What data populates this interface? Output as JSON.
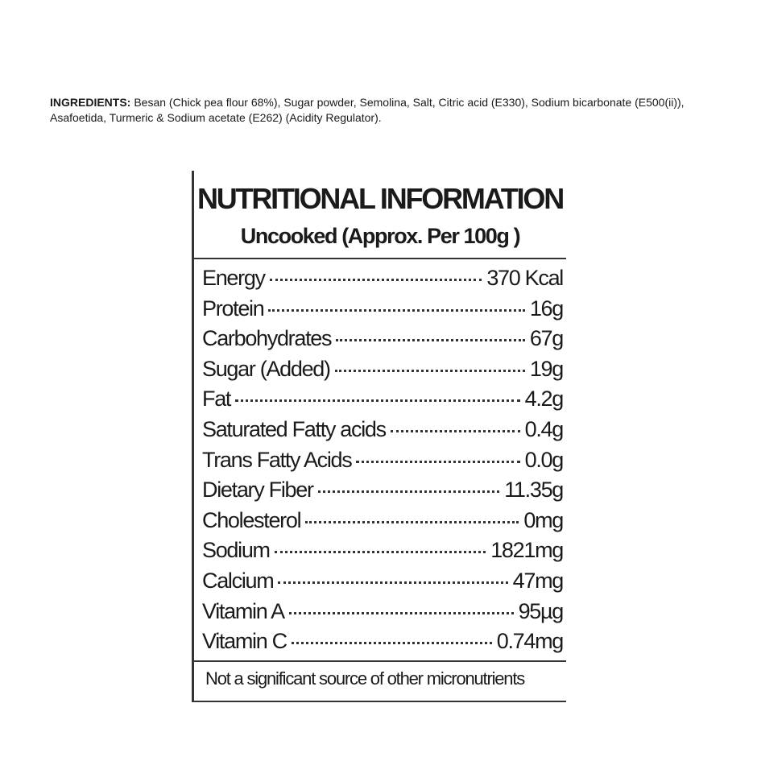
{
  "ingredients": {
    "label": "INGREDIENTS:",
    "text": "Besan (Chick pea flour 68%), Sugar powder, Semolina, Salt, Citric acid (E330), Sodium bicarbonate (E500(ii)), Asafoetida, Turmeric & Sodium acetate (E262) (Acidity Regulator)."
  },
  "nutrition": {
    "title": "NUTRITIONAL INFORMATION",
    "subtitle": "Uncooked (Approx. Per 100g )",
    "rows": [
      {
        "name": "Energy",
        "value": "370 Kcal"
      },
      {
        "name": "Protein",
        "value": "16g"
      },
      {
        "name": "Carbohydrates",
        "value": "67g"
      },
      {
        "name": "Sugar (Added)",
        "value": "19g"
      },
      {
        "name": "Fat",
        "value": "4.2g"
      },
      {
        "name": "Saturated Fatty acids",
        "value": "0.4g"
      },
      {
        "name": "Trans Fatty Acids",
        "value": "0.0g"
      },
      {
        "name": "Dietary Fiber",
        "value": "11.35g"
      },
      {
        "name": "Cholesterol",
        "value": "0mg"
      },
      {
        "name": "Sodium",
        "value": "1821mg"
      },
      {
        "name": "Calcium",
        "value": "47mg"
      },
      {
        "name": "Vitamin A",
        "value": "95µg"
      },
      {
        "name": "Vitamin C",
        "value": "0.74mg"
      }
    ],
    "footnote": "Not a significant source of other micronutrients"
  }
}
